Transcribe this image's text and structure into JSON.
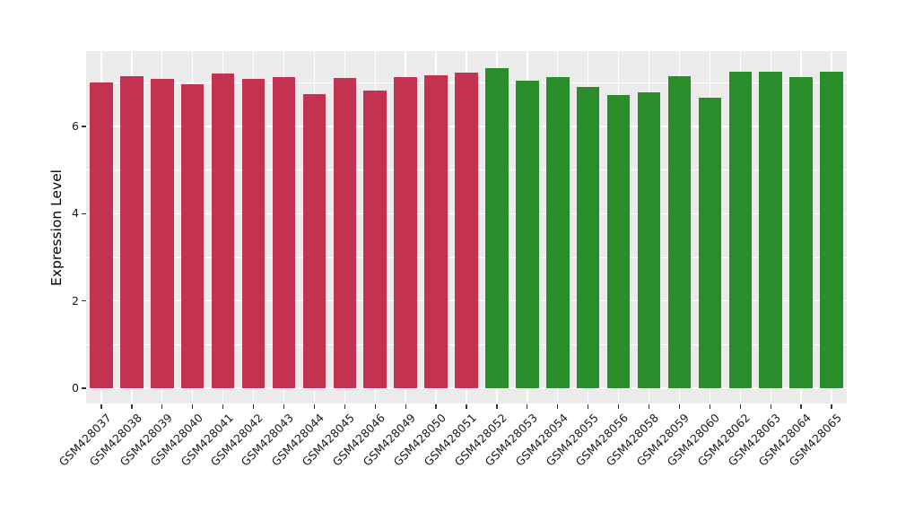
{
  "chart_data": {
    "type": "bar",
    "title": "",
    "ylabel": "Expression Level",
    "xlabel": "",
    "yticks": [
      0,
      2,
      4,
      6
    ],
    "ygrid_minor": [
      1,
      3,
      5,
      7
    ],
    "ylim": [
      -0.37,
      7.73
    ],
    "grid": "on",
    "legend": "none",
    "categories": [
      "GSM428037",
      "GSM428038",
      "GSM428039",
      "GSM428040",
      "GSM428041",
      "GSM428042",
      "GSM428043",
      "GSM428044",
      "GSM428045",
      "GSM428046",
      "GSM428049",
      "GSM428050",
      "GSM428051",
      "GSM428052",
      "GSM428053",
      "GSM428054",
      "GSM428055",
      "GSM428056",
      "GSM428058",
      "GSM428059",
      "GSM428060",
      "GSM428062",
      "GSM428063",
      "GSM428064",
      "GSM428065"
    ],
    "series": [
      {
        "name": "Expression Level",
        "values": [
          7.01,
          7.15,
          7.09,
          6.97,
          7.21,
          7.1,
          7.13,
          6.74,
          7.12,
          6.82,
          7.13,
          7.18,
          7.23,
          7.34,
          7.06,
          7.13,
          6.9,
          6.73,
          6.79,
          7.15,
          6.67,
          7.26,
          7.25,
          7.13,
          7.25
        ]
      }
    ],
    "bar_groups": [
      "A",
      "A",
      "A",
      "A",
      "A",
      "A",
      "A",
      "A",
      "A",
      "A",
      "A",
      "A",
      "A",
      "B",
      "B",
      "B",
      "B",
      "B",
      "B",
      "B",
      "B",
      "B",
      "B",
      "B",
      "B"
    ],
    "group_colors": {
      "A": "#c3324e",
      "B": "#2b8c2b"
    },
    "colors": {
      "figure_background": "#ffffff",
      "panel_background": "#ebebeb",
      "gridline": "#ffffff",
      "tick_mark": "#333333",
      "tick_text": "#1a1a1a"
    }
  }
}
